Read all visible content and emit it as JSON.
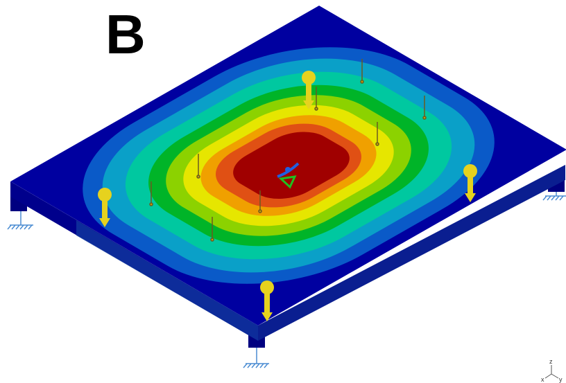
{
  "label": "B",
  "triad": {
    "z": "z",
    "x": "x",
    "y": "y"
  }
}
